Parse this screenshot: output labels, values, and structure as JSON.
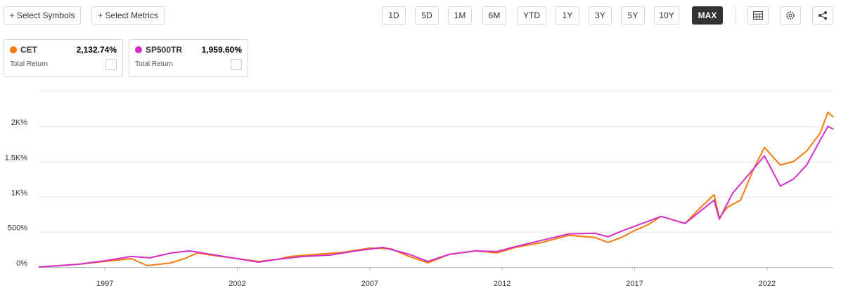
{
  "toolbar": {
    "select_symbols": "+ Select Symbols",
    "select_metrics": "+ Select Metrics",
    "ranges": [
      "1D",
      "5D",
      "1M",
      "6M",
      "YTD",
      "1Y",
      "3Y",
      "5Y",
      "10Y",
      "MAX"
    ],
    "selected": "MAX"
  },
  "chart_data": {
    "type": "line",
    "series": [
      {
        "name": "CET",
        "color": "#f57a10",
        "total_return": "2,132.74%",
        "metric": "Total Return",
        "x": [
          1994.5,
          1996,
          1997,
          1998,
          1998.6,
          1999.5,
          2000,
          2000.5,
          2001,
          2002,
          2002.8,
          2003.5,
          2004,
          2005,
          2006,
          2007,
          2007.8,
          2008.5,
          2009.2,
          2010,
          2011,
          2011.8,
          2012.5,
          2013.5,
          2014.5,
          2015.5,
          2016,
          2016.5,
          2017,
          2017.5,
          2018,
          2018.9,
          2019.5,
          2020,
          2020.2,
          2020.5,
          2021,
          2021.5,
          2021.9,
          2022.5,
          2023,
          2023.5,
          2024,
          2024.3,
          2024.5
        ],
        "values": [
          0,
          40,
          80,
          120,
          20,
          60,
          120,
          200,
          170,
          120,
          80,
          110,
          150,
          180,
          210,
          270,
          260,
          150,
          60,
          180,
          230,
          200,
          280,
          350,
          450,
          420,
          350,
          420,
          520,
          600,
          720,
          620,
          850,
          1030,
          700,
          850,
          950,
          1400,
          1700,
          1450,
          1500,
          1650,
          1900,
          2200,
          2130
        ]
      },
      {
        "name": "SP500TR",
        "color": "#d42ec6",
        "total_return": "1,959.60%",
        "metric": "Total Return",
        "x": [
          1994.5,
          1996,
          1997,
          1998,
          1998.7,
          1999.5,
          2000.2,
          2001,
          2002,
          2002.8,
          2003.5,
          2004.5,
          2005.5,
          2006.5,
          2007.5,
          2008.5,
          2009.2,
          2010,
          2011,
          2011.8,
          2012.5,
          2013.5,
          2014.5,
          2015.5,
          2016,
          2016.5,
          2017,
          2018,
          2018.9,
          2019.5,
          2020,
          2020.2,
          2020.7,
          2021.5,
          2021.9,
          2022.5,
          2023,
          2023.5,
          2024,
          2024.3,
          2024.5
        ],
        "values": [
          0,
          40,
          90,
          150,
          130,
          200,
          230,
          180,
          120,
          70,
          110,
          150,
          170,
          230,
          280,
          180,
          80,
          180,
          230,
          220,
          290,
          380,
          470,
          480,
          430,
          510,
          580,
          720,
          620,
          800,
          950,
          680,
          1050,
          1400,
          1580,
          1150,
          1250,
          1450,
          1800,
          2000,
          1960
        ]
      }
    ],
    "xlim": [
      1994.5,
      2024.5
    ],
    "xticks": [
      1997,
      2002,
      2007,
      2012,
      2017,
      2022
    ],
    "ylim": [
      0,
      2500
    ],
    "yticks": [
      {
        "value": 0,
        "label": "0%"
      },
      {
        "value": 500,
        "label": "500%"
      },
      {
        "value": 1000,
        "label": "1K%"
      },
      {
        "value": 1500,
        "label": "1.5K%"
      },
      {
        "value": 2000,
        "label": "2K%"
      }
    ],
    "grid": true
  }
}
